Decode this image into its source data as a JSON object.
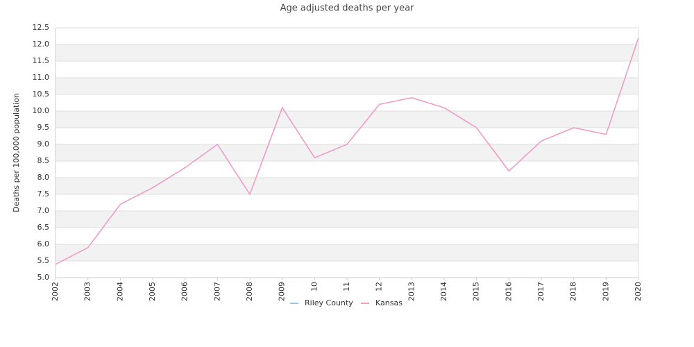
{
  "chart_data": {
    "type": "line",
    "title": "Age adjusted deaths per year",
    "y_label": "Deaths per 100,000 population",
    "categories": [
      "2002",
      "2003",
      "2004",
      "2005",
      "2006",
      "2007",
      "2008",
      "2009",
      "10",
      "11",
      "12",
      "2013",
      "2014",
      "2015",
      "2016",
      "2017",
      "2018",
      "2019",
      "2020"
    ],
    "series": [
      {
        "name": "Riley County",
        "color": "#9ecae1",
        "values": [
          null,
          null,
          null,
          null,
          null,
          null,
          null,
          null,
          null,
          null,
          null,
          null,
          null,
          null,
          null,
          null,
          null,
          null,
          null
        ]
      },
      {
        "name": "Kansas",
        "color": "#f09bc8",
        "values": [
          5.4,
          5.9,
          7.2,
          7.7,
          8.3,
          9.0,
          7.5,
          10.1,
          8.6,
          9.0,
          10.2,
          10.4,
          10.1,
          9.5,
          8.2,
          9.1,
          9.5,
          9.3,
          12.2
        ]
      }
    ],
    "ylim": [
      5,
      12.5
    ],
    "yticks": [
      {
        "value": 5,
        "label": "5.0"
      },
      5.5,
      {
        "value": 6,
        "label": "6.0"
      },
      6.5,
      {
        "value": 7,
        "label": "7.0"
      },
      7.5,
      {
        "value": 8,
        "label": "8.0"
      },
      8.5,
      {
        "value": 9,
        "label": "9.0"
      },
      9.5,
      {
        "value": 10,
        "label": "10.0"
      },
      10.5,
      {
        "value": 11,
        "label": "11.0"
      },
      11.5,
      {
        "value": 12,
        "label": "12.0"
      },
      12.5
    ],
    "grid": true,
    "legend": "bottom"
  }
}
